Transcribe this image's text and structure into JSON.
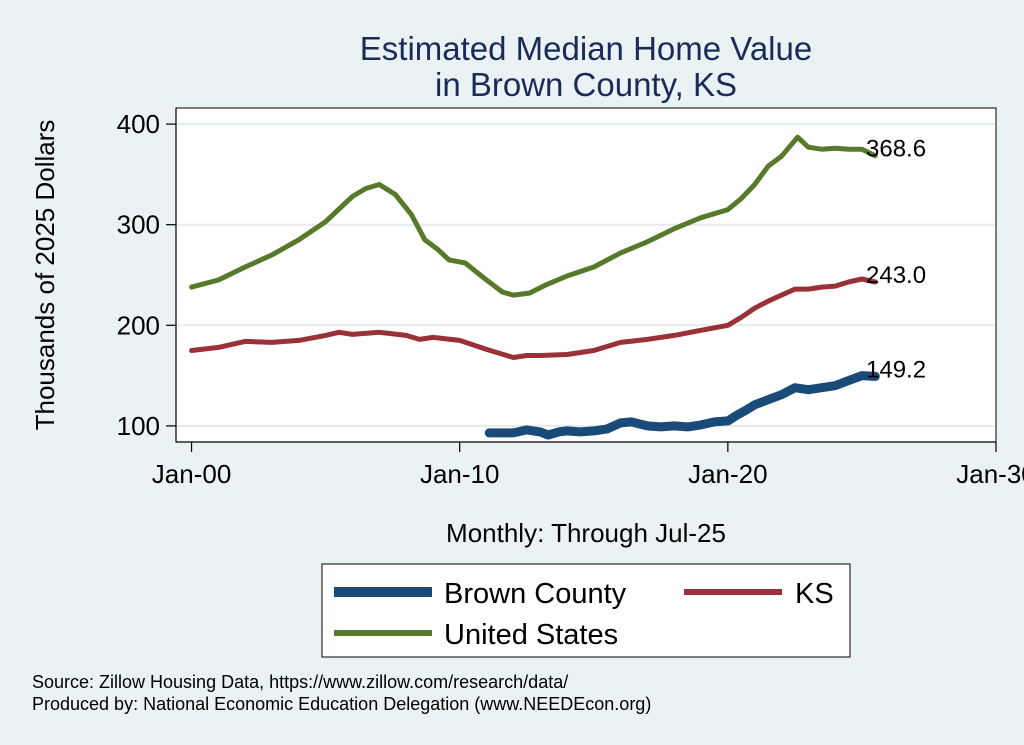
{
  "chart_data": {
    "type": "line",
    "title_lines": [
      "Estimated Median Home Value",
      "in Brown County, KS"
    ],
    "xlabel": "Monthly: Through Jul-25",
    "ylabel": "Thousands of 2025 Dollars",
    "x_ticks": [
      {
        "year": 2000,
        "label": "Jan-00"
      },
      {
        "year": 2010,
        "label": "Jan-10"
      },
      {
        "year": 2020,
        "label": "Jan-20"
      },
      {
        "year": 2030,
        "label": "Jan-30"
      }
    ],
    "y_ticks": [
      100,
      200,
      300,
      400
    ],
    "xlim": [
      1999.42,
      2030.0
    ],
    "ylim": [
      84,
      416
    ],
    "grid": true,
    "legend_position": "bottom",
    "series": [
      {
        "name": "Brown County",
        "color": "#1a4a78",
        "end_label": "149.2",
        "points": [
          [
            2011.1,
            93
          ],
          [
            2012,
            93
          ],
          [
            2012.5,
            96
          ],
          [
            2013,
            94
          ],
          [
            2013.3,
            91
          ],
          [
            2013.7,
            94
          ],
          [
            2014,
            95
          ],
          [
            2014.5,
            94
          ],
          [
            2015,
            95
          ],
          [
            2015.5,
            97
          ],
          [
            2016,
            103
          ],
          [
            2016.4,
            104
          ],
          [
            2017,
            100
          ],
          [
            2017.5,
            99
          ],
          [
            2018,
            100
          ],
          [
            2018.5,
            99
          ],
          [
            2019,
            101
          ],
          [
            2019.5,
            104
          ],
          [
            2020,
            105
          ],
          [
            2020.3,
            110
          ],
          [
            2020.7,
            116
          ],
          [
            2021,
            121
          ],
          [
            2021.5,
            126
          ],
          [
            2022,
            131
          ],
          [
            2022.5,
            138
          ],
          [
            2023,
            136
          ],
          [
            2023.5,
            138
          ],
          [
            2024,
            140
          ],
          [
            2024.5,
            145
          ],
          [
            2025,
            150
          ],
          [
            2025.5,
            149.2
          ]
        ]
      },
      {
        "name": "KS",
        "color": "#9a3038",
        "end_label": "243.0",
        "points": [
          [
            2000,
            175
          ],
          [
            2001,
            178
          ],
          [
            2002,
            184
          ],
          [
            2003,
            183
          ],
          [
            2004,
            185
          ],
          [
            2005,
            190
          ],
          [
            2005.5,
            193
          ],
          [
            2006,
            191
          ],
          [
            2007,
            193
          ],
          [
            2008,
            190
          ],
          [
            2008.5,
            186
          ],
          [
            2009,
            188
          ],
          [
            2010,
            185
          ],
          [
            2011,
            176
          ],
          [
            2012,
            168
          ],
          [
            2012.5,
            170
          ],
          [
            2013,
            170
          ],
          [
            2014,
            171
          ],
          [
            2015,
            175
          ],
          [
            2016,
            183
          ],
          [
            2017,
            186
          ],
          [
            2018,
            190
          ],
          [
            2019,
            195
          ],
          [
            2020,
            200
          ],
          [
            2020.5,
            208
          ],
          [
            2021,
            217
          ],
          [
            2021.5,
            224
          ],
          [
            2022,
            230
          ],
          [
            2022.5,
            236
          ],
          [
            2023,
            236
          ],
          [
            2023.5,
            238
          ],
          [
            2024,
            239
          ],
          [
            2024.5,
            243
          ],
          [
            2025,
            246
          ],
          [
            2025.5,
            243
          ]
        ]
      },
      {
        "name": "United States",
        "color": "#577a2a",
        "end_label": "368.6",
        "points": [
          [
            2000,
            238
          ],
          [
            2001,
            245
          ],
          [
            2002,
            258
          ],
          [
            2003,
            270
          ],
          [
            2004,
            285
          ],
          [
            2005,
            303
          ],
          [
            2006,
            328
          ],
          [
            2006.5,
            336
          ],
          [
            2007,
            340
          ],
          [
            2007.6,
            330
          ],
          [
            2008.2,
            310
          ],
          [
            2008.7,
            285
          ],
          [
            2009.2,
            275
          ],
          [
            2009.6,
            265
          ],
          [
            2010.2,
            262
          ],
          [
            2011,
            245
          ],
          [
            2011.6,
            233
          ],
          [
            2012,
            230
          ],
          [
            2012.6,
            232
          ],
          [
            2013.2,
            240
          ],
          [
            2014,
            249
          ],
          [
            2015,
            258
          ],
          [
            2016,
            272
          ],
          [
            2017,
            283
          ],
          [
            2018,
            296
          ],
          [
            2019,
            307
          ],
          [
            2020,
            315
          ],
          [
            2020.5,
            326
          ],
          [
            2021,
            340
          ],
          [
            2021.5,
            358
          ],
          [
            2022,
            368
          ],
          [
            2022.6,
            387
          ],
          [
            2023,
            377
          ],
          [
            2023.5,
            375
          ],
          [
            2024,
            376
          ],
          [
            2024.5,
            375
          ],
          [
            2025,
            375
          ],
          [
            2025.5,
            368.6
          ]
        ]
      }
    ]
  },
  "legend": {
    "items": [
      {
        "label": "Brown County",
        "color": "#1a4a78"
      },
      {
        "label": "KS",
        "color": "#9a3038"
      },
      {
        "label": "United States",
        "color": "#577a2a"
      }
    ]
  },
  "footnotes": {
    "source": "Source: Zillow Housing Data, https://www.zillow.com/research/data/",
    "produced_by": "Produced by: National Economic Education Delegation (www.NEEDEcon.org)"
  }
}
